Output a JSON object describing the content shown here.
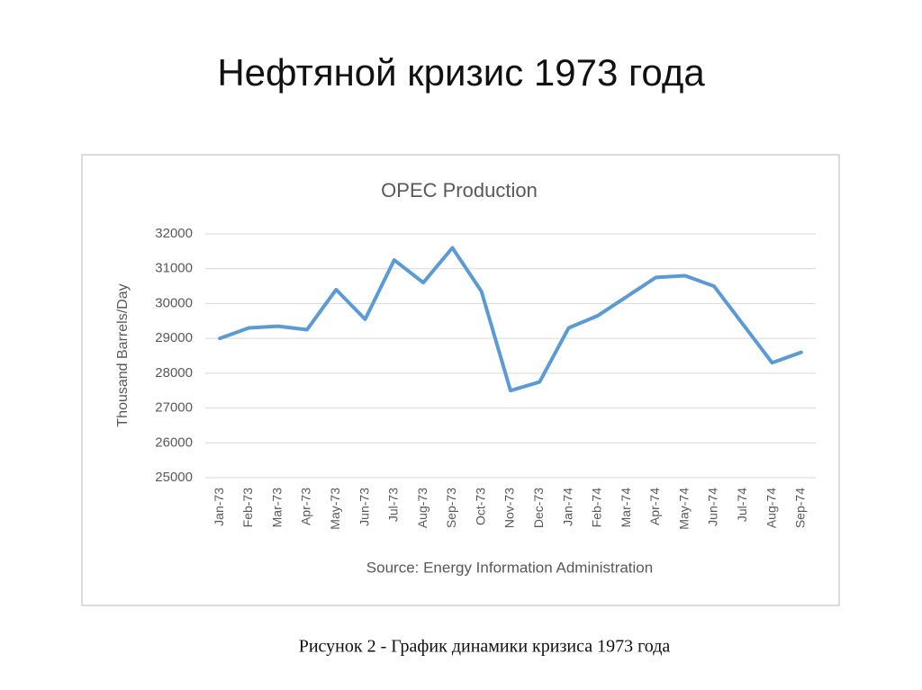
{
  "slide": {
    "title": "Нефтяной кризис 1973 года",
    "caption": "Рисунок 2 - График динамики кризиса 1973 года"
  },
  "chart_data": {
    "type": "line",
    "title": "OPEC Production",
    "y_label": "Thousand Barrels/Day",
    "source": "Source: Energy Information Administration",
    "categories": [
      "Jan-73",
      "Feb-73",
      "Mar-73",
      "Apr-73",
      "May-73",
      "Jun-73",
      "Jul-73",
      "Aug-73",
      "Sep-73",
      "Oct-73",
      "Nov-73",
      "Dec-73",
      "Jan-74",
      "Feb-74",
      "Mar-74",
      "Apr-74",
      "May-74",
      "Jun-74",
      "Jul-74",
      "Aug-74",
      "Sep-74"
    ],
    "values": [
      29000,
      29300,
      29350,
      29250,
      30400,
      29550,
      31250,
      30600,
      31600,
      30350,
      27500,
      27750,
      29300,
      29650,
      30200,
      30750,
      30800,
      30500,
      29400,
      28300,
      28600
    ],
    "color": "#5b9bd5",
    "ylim": [
      25000,
      32000
    ],
    "yticks": [
      25000,
      26000,
      27000,
      28000,
      29000,
      30000,
      31000,
      32000
    ],
    "grid": true
  }
}
